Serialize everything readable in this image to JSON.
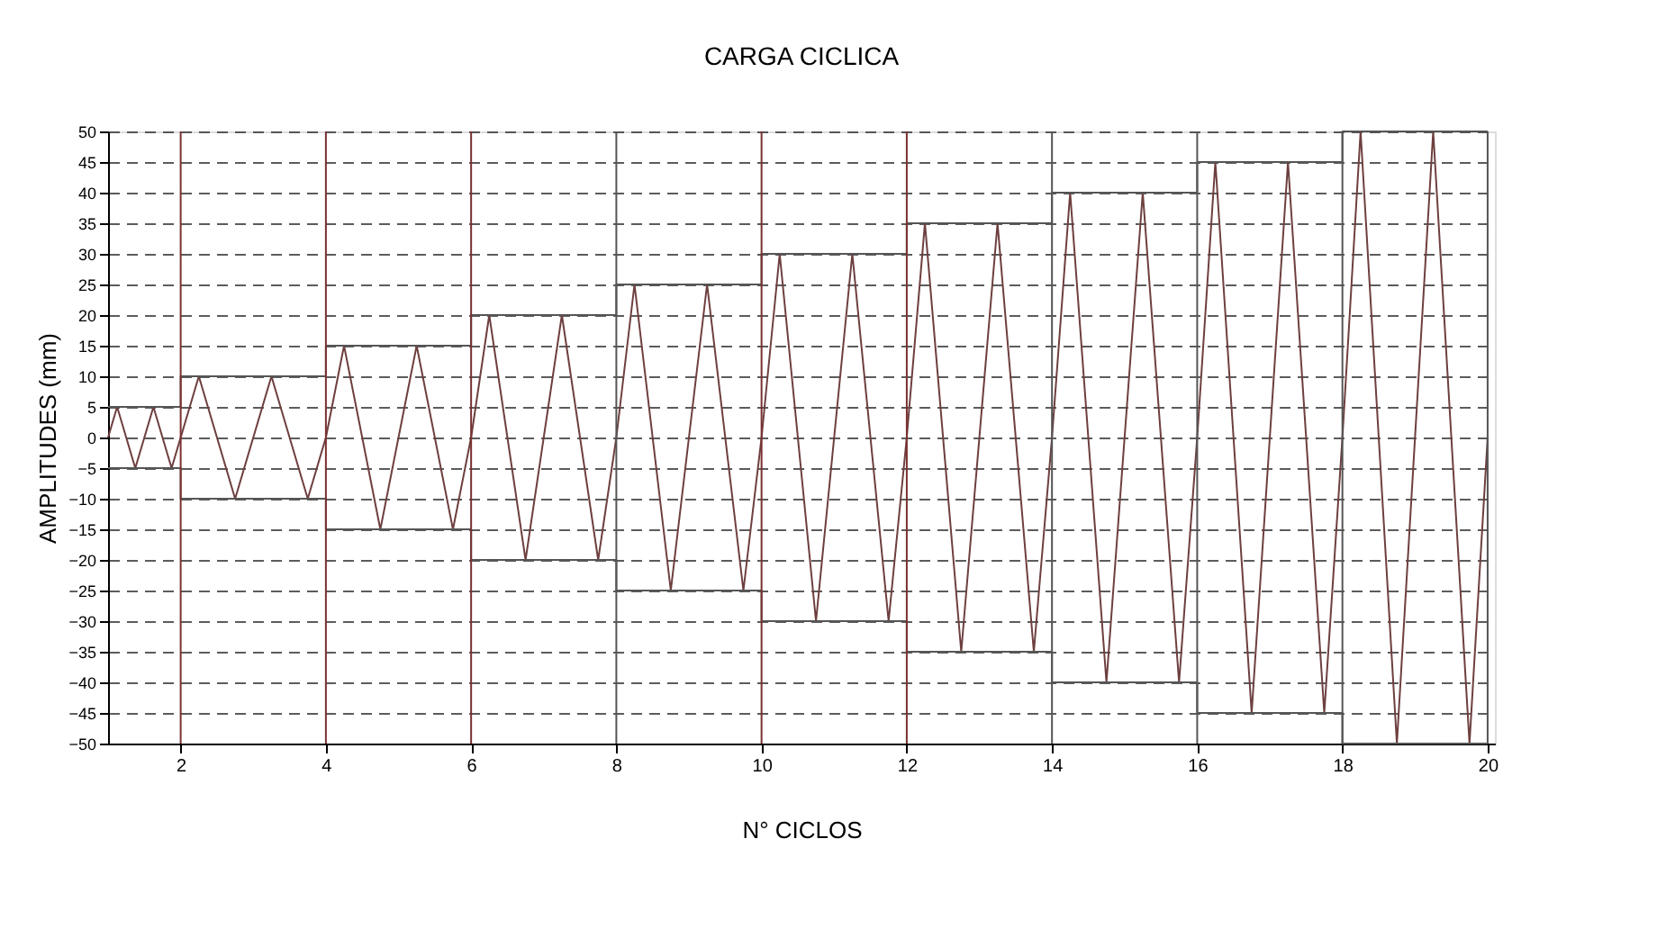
{
  "chart_data": {
    "type": "line",
    "title": "CARGA CICLICA",
    "xlabel": "N° CICLOS",
    "ylabel": "AMPLITUDES (mm)",
    "xlim": [
      1,
      20.1
    ],
    "xticks": [
      2,
      4,
      6,
      8,
      10,
      12,
      14,
      16,
      18,
      20
    ],
    "ylim": [
      -50,
      50
    ],
    "yticks": [
      -50,
      -45,
      -40,
      -35,
      -30,
      -25,
      -20,
      -15,
      -10,
      -5,
      0,
      5,
      10,
      15,
      20,
      25,
      30,
      35,
      40,
      45,
      50
    ],
    "grid": "y",
    "line_style": "solid",
    "marker": "none",
    "series": [
      {
        "color": "#6e3f3f",
        "x": [
          1,
          1.125,
          1.375,
          1.625,
          1.875,
          2,
          2.25,
          2.75,
          3.25,
          3.75,
          4,
          4.25,
          4.75,
          5.25,
          5.75,
          6,
          6.25,
          6.75,
          7.25,
          7.75,
          8,
          8.25,
          8.75,
          9.25,
          9.75,
          10,
          10.25,
          10.75,
          11.25,
          11.75,
          12,
          12.25,
          12.75,
          13.25,
          13.75,
          14,
          14.25,
          14.75,
          15.25,
          15.75,
          16,
          16.25,
          16.75,
          17.25,
          17.75,
          18,
          18.25,
          18.75,
          19.25,
          19.75,
          20
        ],
        "values": [
          0,
          5,
          -5,
          5,
          -5,
          0,
          10,
          -10,
          10,
          -10,
          0,
          15,
          -15,
          15,
          -15,
          0,
          20,
          -20,
          20,
          -20,
          0,
          25,
          -25,
          25,
          -25,
          0,
          30,
          -30,
          30,
          -30,
          0,
          35,
          -35,
          35,
          -35,
          0,
          40,
          -40,
          40,
          -40,
          0,
          45,
          -45,
          45,
          -45,
          0,
          50,
          -50,
          50,
          -50,
          0
        ]
      },
      {
        "type": "step",
        "color": "#555555",
        "x": [
          1,
          2,
          4,
          6,
          8,
          10,
          12,
          14,
          16,
          18,
          20
        ],
        "values": [
          5,
          10,
          15,
          20,
          25,
          30,
          35,
          40,
          45,
          50,
          50
        ]
      },
      {
        "type": "step",
        "color": "#555555",
        "x": [
          1,
          2,
          4,
          6,
          8,
          10,
          12,
          14,
          16,
          18,
          20
        ],
        "values": [
          -5,
          -10,
          -15,
          -20,
          -25,
          -30,
          -35,
          -40,
          -45,
          -50,
          -50
        ]
      }
    ],
    "ref_lines": [
      {
        "axis": "x",
        "value": 2,
        "color": "#7a3030"
      },
      {
        "axis": "x",
        "value": 4,
        "color": "#7a3030"
      },
      {
        "axis": "x",
        "value": 6,
        "color": "#7a3030"
      },
      {
        "axis": "x",
        "value": 8,
        "color": "#555555"
      },
      {
        "axis": "x",
        "value": 10,
        "color": "#7a3030"
      },
      {
        "axis": "x",
        "value": 12,
        "color": "#7a3030"
      },
      {
        "axis": "x",
        "value": 14,
        "color": "#555555"
      },
      {
        "axis": "x",
        "value": 16,
        "color": "#555555"
      },
      {
        "axis": "x",
        "value": 18,
        "color": "#555555"
      },
      {
        "axis": "x",
        "value": 20,
        "color": "#555555"
      }
    ]
  }
}
